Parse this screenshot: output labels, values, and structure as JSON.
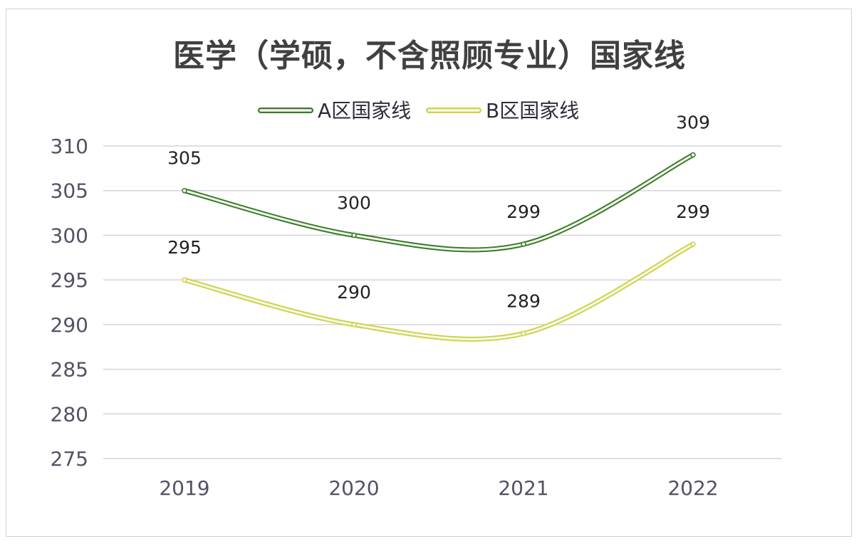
{
  "chart_data": {
    "type": "line",
    "title": "医学（学硕，不含照顾专业）国家线",
    "categories": [
      "2019",
      "2020",
      "2021",
      "2022"
    ],
    "series": [
      {
        "name": "A区国家线",
        "values": [
          305,
          300,
          299,
          309
        ],
        "color": "#3a7a2a"
      },
      {
        "name": "B区国家线",
        "values": [
          295,
          290,
          289,
          299
        ],
        "color": "#d2d246"
      }
    ],
    "ylim": [
      275,
      310
    ],
    "yticks": [
      310,
      305,
      300,
      295,
      290,
      285,
      280,
      275
    ],
    "grid": true,
    "smooth": true,
    "data_labels": true,
    "legend": "top"
  }
}
